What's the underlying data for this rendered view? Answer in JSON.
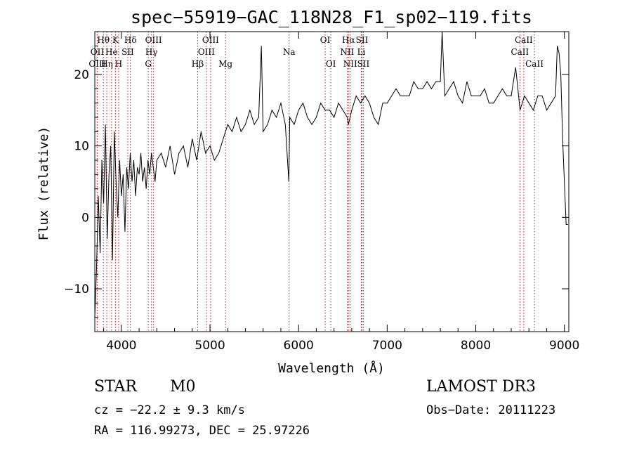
{
  "chart_data": {
    "type": "line",
    "title": "spec−55919−GAC_118N28_F1_sp02−119.fits",
    "xlabel": "Wavelength (Å)",
    "ylabel": "Flux (relative)",
    "xlim": [
      3700,
      9050
    ],
    "ylim": [
      -16,
      26
    ],
    "x_ticks": [
      4000,
      5000,
      6000,
      7000,
      8000,
      9000
    ],
    "y_ticks": [
      -10,
      0,
      10,
      20
    ],
    "series": [
      {
        "name": "flux",
        "x": [
          3700,
          3720,
          3740,
          3760,
          3780,
          3800,
          3820,
          3840,
          3860,
          3880,
          3900,
          3920,
          3940,
          3960,
          3980,
          4000,
          4020,
          4040,
          4060,
          4080,
          4100,
          4120,
          4140,
          4160,
          4180,
          4200,
          4220,
          4240,
          4260,
          4280,
          4300,
          4320,
          4340,
          4360,
          4380,
          4400,
          4450,
          4500,
          4550,
          4600,
          4650,
          4700,
          4750,
          4800,
          4850,
          4900,
          4950,
          5000,
          5050,
          5100,
          5150,
          5200,
          5250,
          5300,
          5350,
          5400,
          5450,
          5500,
          5550,
          5580,
          5600,
          5650,
          5700,
          5750,
          5800,
          5850,
          5890,
          5900,
          5950,
          6000,
          6050,
          6100,
          6150,
          6200,
          6250,
          6300,
          6350,
          6400,
          6450,
          6500,
          6550,
          6563,
          6600,
          6650,
          6700,
          6750,
          6800,
          6850,
          6900,
          6950,
          7000,
          7050,
          7100,
          7150,
          7200,
          7250,
          7300,
          7350,
          7400,
          7450,
          7500,
          7550,
          7600,
          7620,
          7650,
          7700,
          7750,
          7800,
          7850,
          7900,
          7950,
          8000,
          8050,
          8100,
          8150,
          8200,
          8250,
          8300,
          8350,
          8400,
          8450,
          8500,
          8550,
          8600,
          8650,
          8700,
          8750,
          8800,
          8850,
          8900,
          8920,
          8940,
          8960,
          8980,
          9000,
          9020,
          9040
        ],
        "y": [
          -14,
          -7,
          3,
          -5,
          8,
          2,
          13,
          -3,
          6,
          10,
          -6,
          12,
          5,
          0,
          8,
          3,
          6,
          -2,
          7,
          4,
          9,
          5,
          8,
          3,
          7,
          6,
          9,
          5,
          7,
          4,
          8,
          6,
          9,
          7,
          5,
          8,
          9,
          7,
          10,
          6,
          9,
          10,
          7,
          11,
          8,
          12,
          9,
          10,
          8,
          9,
          11,
          13,
          12,
          14,
          12,
          13,
          15,
          13,
          14,
          24,
          12,
          13,
          15,
          14,
          16,
          13,
          5,
          14,
          13,
          15,
          16,
          14,
          13,
          14,
          16,
          15,
          15,
          14,
          16,
          15,
          14,
          13,
          15,
          17,
          16,
          17,
          16,
          14,
          13,
          16,
          16,
          17,
          18,
          17,
          17,
          17,
          19,
          18,
          18,
          19,
          18,
          19,
          19,
          26,
          17,
          18,
          19,
          17,
          16,
          19,
          17,
          17,
          17,
          18,
          16,
          16,
          17,
          18,
          17,
          17,
          21,
          15,
          17,
          16,
          15,
          17,
          17,
          15,
          16,
          17,
          24,
          23,
          20,
          11,
          5,
          -1,
          -1
        ]
      }
    ],
    "lines": [
      {
        "label": "Hθ",
        "x": 3797,
        "row": 1
      },
      {
        "label": "OII",
        "x": 3727,
        "row": 2
      },
      {
        "label": "OIII",
        "x": 3727,
        "row": 3
      },
      {
        "label": "K",
        "x": 3934,
        "row": 1
      },
      {
        "label": "He",
        "x": 3889,
        "row": 2
      },
      {
        "label": "Hη",
        "x": 3835,
        "row": 3
      },
      {
        "label": "Hδ",
        "x": 4102,
        "row": 1
      },
      {
        "label": "SII",
        "x": 4072,
        "row": 2
      },
      {
        "label": "H",
        "x": 3969,
        "row": 3
      },
      {
        "label": "OIII",
        "x": 4363,
        "row": 1
      },
      {
        "label": "Hγ",
        "x": 4340,
        "row": 2
      },
      {
        "label": "G",
        "x": 4304,
        "row": 3
      },
      {
        "label": "OIII",
        "x": 5007,
        "row": 1
      },
      {
        "label": "OIII",
        "x": 4959,
        "row": 2
      },
      {
        "label": "Hβ",
        "x": 4861,
        "row": 3
      },
      {
        "label": "Mg",
        "x": 5175,
        "row": 3
      },
      {
        "label": "Na",
        "x": 5893,
        "row": 2
      },
      {
        "label": "OI",
        "x": 6300,
        "row": 1
      },
      {
        "label": "OI",
        "x": 6364,
        "row": 3
      },
      {
        "label": "Hα",
        "x": 6563,
        "row": 1
      },
      {
        "label": "NII",
        "x": 6548,
        "row": 2
      },
      {
        "label": "NII",
        "x": 6583,
        "row": 3
      },
      {
        "label": "SII",
        "x": 6716,
        "row": 1
      },
      {
        "label": "Li",
        "x": 6708,
        "row": 2
      },
      {
        "label": "SII",
        "x": 6731,
        "row": 3
      },
      {
        "label": "CaII",
        "x": 8542,
        "row": 1
      },
      {
        "label": "CaII",
        "x": 8498,
        "row": 2
      },
      {
        "label": "CaII",
        "x": 8662,
        "row": 3
      }
    ]
  },
  "info": {
    "class_text": "STAR",
    "subclass_text": "M0",
    "survey_text": "LAMOST DR3",
    "cz_text": "cz = −22.2 ± 9.3 km/s",
    "obsdate_text": "Obs−Date: 20111223",
    "radec_text": "RA = 116.99273, DEC =  25.97226"
  },
  "colors": {
    "line_marker": "#b22222",
    "spectrum": "#000000"
  }
}
